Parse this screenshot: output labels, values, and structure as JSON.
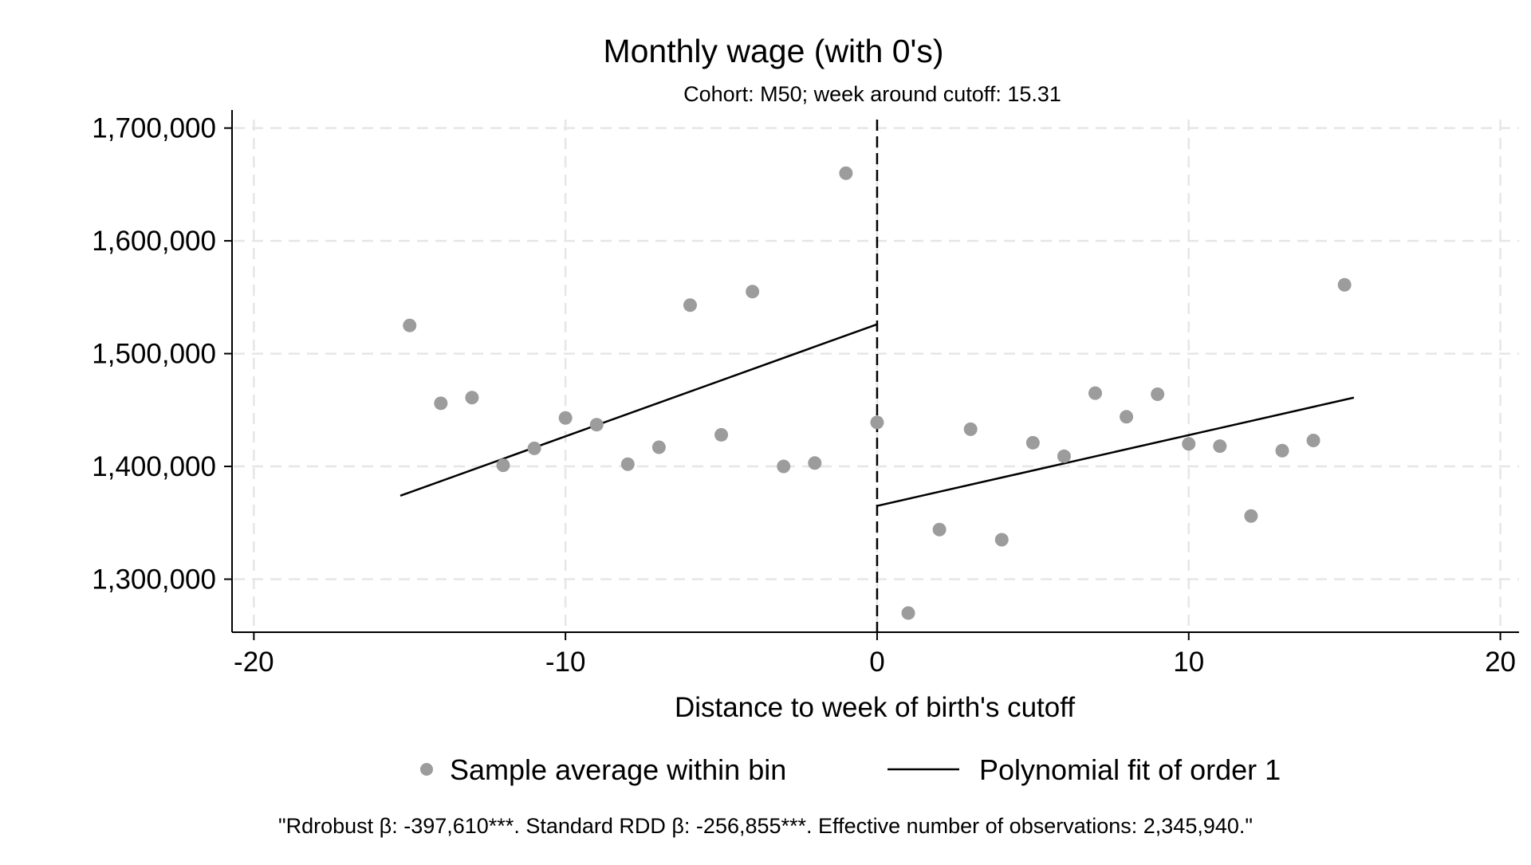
{
  "chart_data": {
    "type": "scatter",
    "title": "Monthly wage (with 0's)",
    "subtitle": "Cohort: M50; week around cutoff: 15.31",
    "xlabel": "Distance to week of birth's cutoff",
    "ylabel": "",
    "xlim": [
      -20.7,
      20.6
    ],
    "ylim": [
      1253000,
      1716000
    ],
    "xticks": [
      -20,
      -10,
      0,
      10,
      20
    ],
    "xtick_labels": [
      "-20",
      "-10",
      "0",
      "10",
      "20"
    ],
    "yticks": [
      1300000,
      1400000,
      1500000,
      1600000,
      1700000
    ],
    "ytick_labels": [
      "1,300,000",
      "1,400,000",
      "1,500,000",
      "1,600,000",
      "1,700,000"
    ],
    "grid": true,
    "cutoff": 0,
    "legend_position": "bottom",
    "series": [
      {
        "name": "Sample average within bin",
        "kind": "scatter",
        "color": "#9c9c9c",
        "x": [
          -15,
          -14,
          -13,
          -12,
          -11,
          -10,
          -9,
          -8,
          -7,
          -6,
          -5,
          -4,
          -3,
          -2,
          -1,
          0,
          1,
          2,
          3,
          4,
          5,
          6,
          7,
          8,
          9,
          10,
          11,
          12,
          13,
          14,
          15
        ],
        "y": [
          1525000,
          1456000,
          1461000,
          1401000,
          1416000,
          1443000,
          1437000,
          1402000,
          1417000,
          1543000,
          1428000,
          1555000,
          1400000,
          1403000,
          1660000,
          1439000,
          1270000,
          1344000,
          1433000,
          1335000,
          1421000,
          1409000,
          1465000,
          1444000,
          1464000,
          1420000,
          1418000,
          1356000,
          1414000,
          1423000,
          1561000
        ]
      },
      {
        "name": "Polynomial fit of order 1",
        "kind": "line",
        "color": "#000000",
        "segments": [
          {
            "x": [
              -15.3,
              0
            ],
            "y": [
              1374000,
              1526000
            ]
          },
          {
            "x": [
              0,
              15.3
            ],
            "y": [
              1365000,
              1461000
            ]
          }
        ]
      }
    ],
    "note": "\"Rdrobust β: -397,610***. Standard RDD β: -256,855***. Effective number of observations: 2,345,940.\""
  }
}
